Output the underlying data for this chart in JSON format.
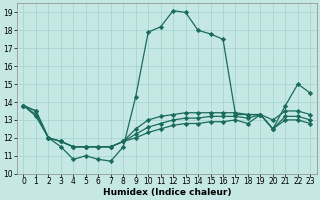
{
  "title": "",
  "xlabel": "Humidex (Indice chaleur)",
  "bg_color": "#c5e8e5",
  "grid_color": "#a8d5d0",
  "line_color": "#1a6b5a",
  "xlim": [
    -0.5,
    23.5
  ],
  "ylim": [
    10,
    19.5
  ],
  "yticks": [
    10,
    11,
    12,
    13,
    14,
    15,
    16,
    17,
    18,
    19
  ],
  "xticks": [
    0,
    1,
    2,
    3,
    4,
    5,
    6,
    7,
    8,
    9,
    10,
    11,
    12,
    13,
    14,
    15,
    16,
    17,
    18,
    19,
    20,
    21,
    22,
    23
  ],
  "xticklabels": [
    "0",
    "1",
    "2",
    "3",
    "4",
    "5",
    "6",
    "7",
    "8",
    "9",
    "10",
    "11",
    "12",
    "13",
    "14",
    "15",
    "16",
    "17",
    "18",
    "19",
    "20",
    "21",
    "22",
    "23"
  ],
  "series": [
    [
      13.8,
      13.5,
      12.0,
      11.5,
      10.8,
      11.0,
      10.8,
      10.7,
      11.5,
      14.3,
      17.9,
      18.2,
      19.1,
      19.0,
      18.0,
      17.8,
      17.5,
      13.3,
      13.3,
      13.3,
      12.5,
      13.8,
      15.0,
      14.5
    ],
    [
      13.8,
      13.5,
      12.0,
      11.8,
      11.5,
      11.5,
      11.5,
      11.5,
      11.8,
      12.5,
      13.0,
      13.2,
      13.3,
      13.4,
      13.4,
      13.4,
      13.4,
      13.4,
      13.3,
      13.3,
      13.0,
      13.5,
      13.5,
      13.3
    ],
    [
      13.8,
      13.3,
      12.0,
      11.8,
      11.5,
      11.5,
      11.5,
      11.5,
      11.8,
      12.2,
      12.6,
      12.8,
      13.0,
      13.1,
      13.1,
      13.2,
      13.2,
      13.2,
      13.1,
      13.3,
      12.5,
      13.2,
      13.2,
      13.0
    ],
    [
      13.8,
      13.2,
      12.0,
      11.8,
      11.5,
      11.5,
      11.5,
      11.5,
      11.8,
      12.0,
      12.3,
      12.5,
      12.7,
      12.8,
      12.8,
      12.9,
      12.9,
      13.0,
      12.8,
      13.3,
      12.5,
      13.0,
      13.0,
      12.8
    ]
  ],
  "marker": "D",
  "markersize": 2.2,
  "linewidth": 0.9
}
